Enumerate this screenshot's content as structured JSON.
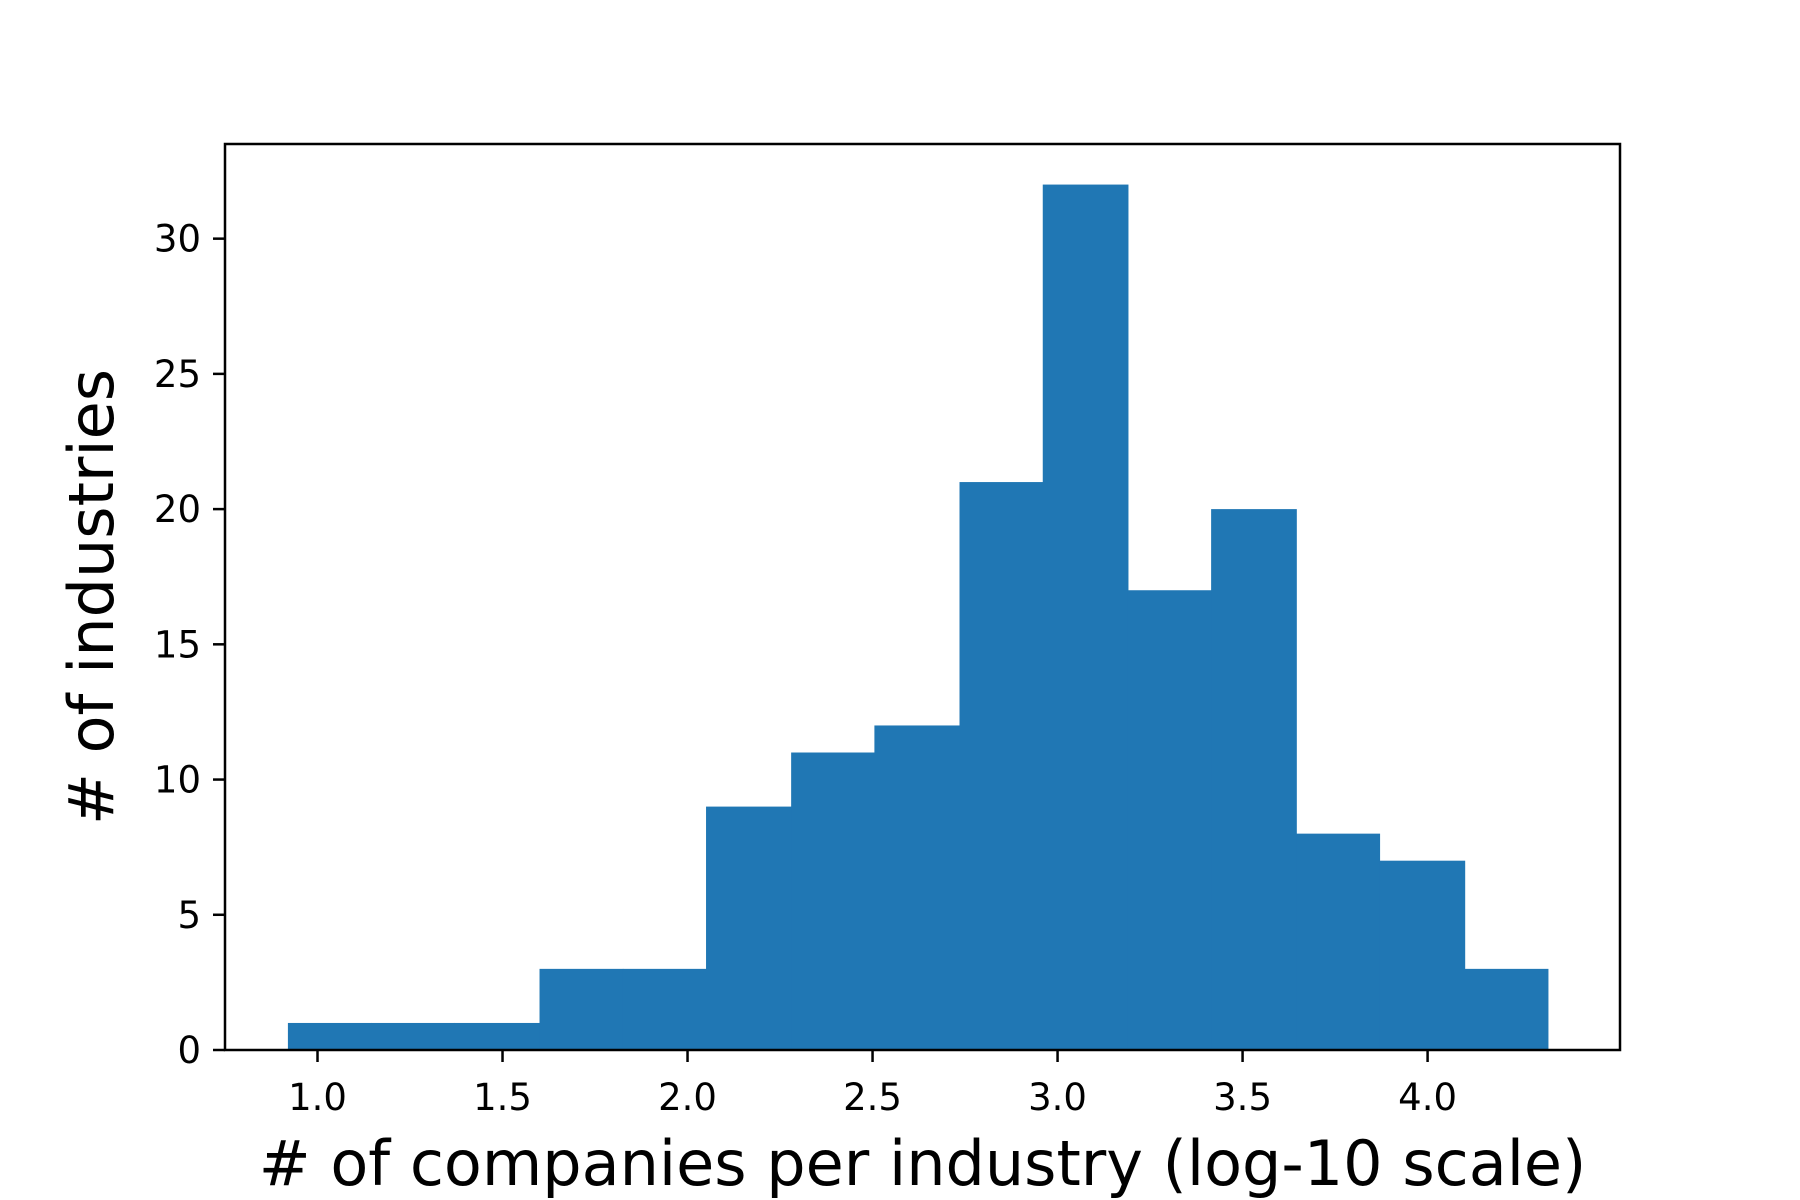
{
  "chart_data": {
    "type": "bar",
    "subtype": "histogram",
    "xlabel": "# of companies per industry (log-10 scale)",
    "ylabel": "# of industries",
    "xlim": [
      0.75,
      4.52
    ],
    "ylim": [
      0,
      33.5
    ],
    "x_ticks": [
      {
        "value": 1.0,
        "label": "1.0"
      },
      {
        "value": 1.5,
        "label": "1.5"
      },
      {
        "value": 2.0,
        "label": "2.0"
      },
      {
        "value": 2.5,
        "label": "2.5"
      },
      {
        "value": 3.0,
        "label": "3.0"
      },
      {
        "value": 3.5,
        "label": "3.5"
      },
      {
        "value": 4.0,
        "label": "4.0"
      }
    ],
    "y_ticks": [
      {
        "value": 0,
        "label": "0"
      },
      {
        "value": 5,
        "label": "5"
      },
      {
        "value": 10,
        "label": "10"
      },
      {
        "value": 15,
        "label": "15"
      },
      {
        "value": 20,
        "label": "20"
      },
      {
        "value": 25,
        "label": "25"
      },
      {
        "value": 30,
        "label": "30"
      }
    ],
    "bins": [
      {
        "x0": 0.92,
        "x1": 1.145,
        "count": 1
      },
      {
        "x0": 1.145,
        "x1": 1.37,
        "count": 1
      },
      {
        "x0": 1.37,
        "x1": 1.6,
        "count": 1
      },
      {
        "x0": 1.6,
        "x1": 1.825,
        "count": 3
      },
      {
        "x0": 1.825,
        "x1": 2.05,
        "count": 3
      },
      {
        "x0": 2.05,
        "x1": 2.28,
        "count": 9
      },
      {
        "x0": 2.28,
        "x1": 2.505,
        "count": 11
      },
      {
        "x0": 2.505,
        "x1": 2.735,
        "count": 12
      },
      {
        "x0": 2.735,
        "x1": 2.96,
        "count": 21
      },
      {
        "x0": 2.96,
        "x1": 3.19,
        "count": 32
      },
      {
        "x0": 3.19,
        "x1": 3.415,
        "count": 17
      },
      {
        "x0": 3.415,
        "x1": 3.645,
        "count": 20
      },
      {
        "x0": 3.645,
        "x1": 3.87,
        "count": 8
      },
      {
        "x0": 3.87,
        "x1": 4.1,
        "count": 7
      },
      {
        "x0": 4.1,
        "x1": 4.325,
        "count": 3
      }
    ],
    "bar_color": "#2077b4",
    "grid": false,
    "legend": "none"
  }
}
